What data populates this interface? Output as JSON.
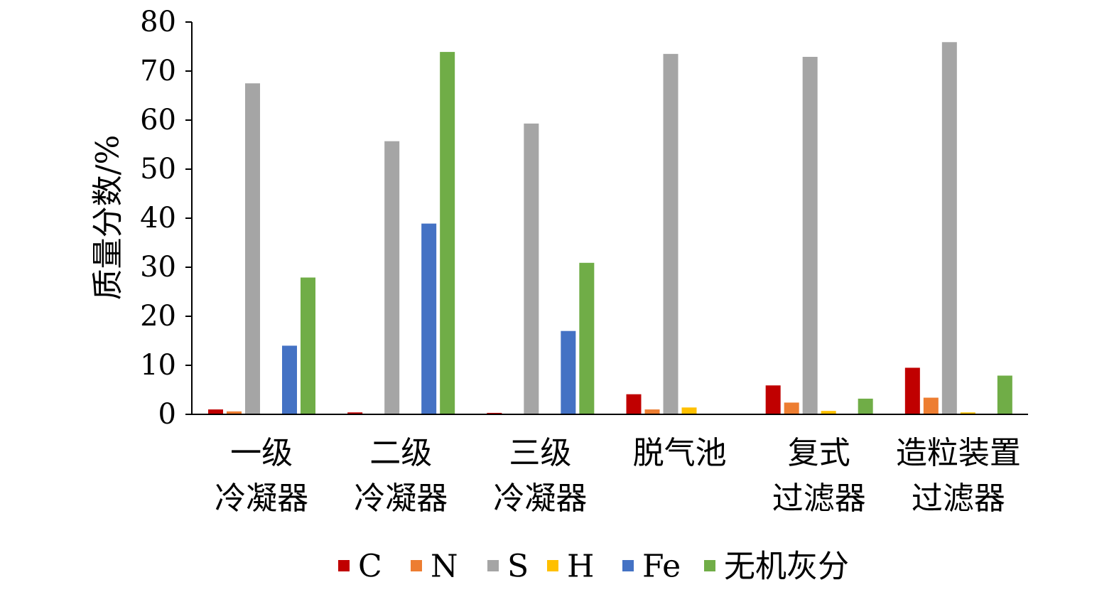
{
  "chart_data": {
    "type": "bar",
    "title": "",
    "ylabel": "质量分数/%",
    "xlabel": "",
    "ylim": [
      0,
      80
    ],
    "yticks": [
      "0",
      "10",
      "20",
      "30",
      "40",
      "50",
      "60",
      "70",
      "80"
    ],
    "grid": false,
    "legend_position": "bottom",
    "categories": [
      [
        "一级",
        "冷凝器"
      ],
      [
        "二级",
        "冷凝器"
      ],
      [
        "三级",
        "冷凝器"
      ],
      [
        "脱气池"
      ],
      [
        "复式",
        "过滤器"
      ],
      [
        "造粒装置",
        "过滤器"
      ]
    ],
    "series": [
      {
        "name": "C",
        "color": "#C00000",
        "values": [
          1.0,
          0.4,
          0.3,
          4.1,
          5.9,
          9.5
        ]
      },
      {
        "name": "N",
        "color": "#ED7D31",
        "values": [
          0.6,
          0,
          0,
          1.0,
          2.4,
          3.4
        ]
      },
      {
        "name": "S",
        "color": "#A5A5A5",
        "values": [
          67.5,
          55.7,
          59.3,
          73.5,
          72.9,
          75.9
        ]
      },
      {
        "name": "H",
        "color": "#FFC000",
        "values": [
          0,
          0,
          0,
          1.4,
          0.7,
          0.4
        ]
      },
      {
        "name": "Fe",
        "color": "#4472C4",
        "values": [
          14.0,
          38.9,
          17.0,
          0,
          0,
          0
        ]
      },
      {
        "name": "无机灰分",
        "color": "#70AD47",
        "values": [
          27.9,
          73.9,
          30.9,
          0,
          3.2,
          7.9
        ]
      }
    ]
  }
}
